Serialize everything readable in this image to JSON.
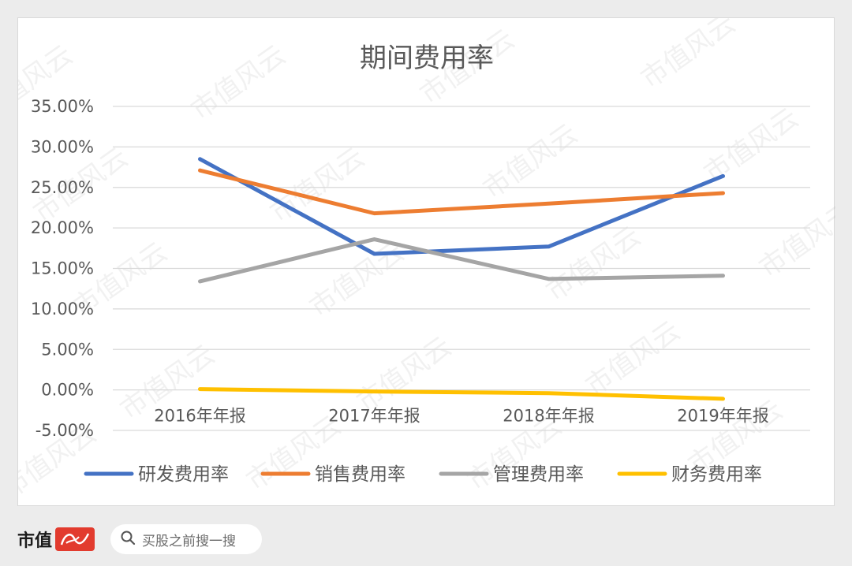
{
  "chart_data": {
    "type": "line",
    "title": "期间费用率",
    "categories": [
      "2016年年报",
      "2017年年报",
      "2018年年报",
      "2019年年报"
    ],
    "ylim": [
      -0.05,
      0.35
    ],
    "yticks": [
      "35.00%",
      "30.00%",
      "25.00%",
      "20.00%",
      "15.00%",
      "10.00%",
      "5.00%",
      "0.00%",
      "-5.00%"
    ],
    "ytick_values": [
      0.35,
      0.3,
      0.25,
      0.2,
      0.15,
      0.1,
      0.05,
      0.0,
      -0.05
    ],
    "grid": true,
    "legend_position": "bottom",
    "series": [
      {
        "name": "研发费用率",
        "color": "#4472C4",
        "values": [
          0.285,
          0.168,
          0.177,
          0.264
        ]
      },
      {
        "name": "销售费用率",
        "color": "#ED7D31",
        "values": [
          0.271,
          0.218,
          0.23,
          0.243
        ]
      },
      {
        "name": "管理费用率",
        "color": "#A5A5A5",
        "values": [
          0.134,
          0.186,
          0.137,
          0.141
        ]
      },
      {
        "name": "财务费用率",
        "color": "#FFC000",
        "values": [
          0.001,
          -0.002,
          -0.004,
          -0.011
        ]
      }
    ]
  },
  "footer": {
    "brand_name": "市值",
    "brand_seal_text": "风云",
    "search_icon": "search-icon",
    "search_placeholder": "买股之前搜一搜"
  },
  "watermark_text": "市值风云",
  "colors": {
    "background": "#ececec",
    "card": "#ffffff",
    "brand_red": "#e23b2e"
  }
}
